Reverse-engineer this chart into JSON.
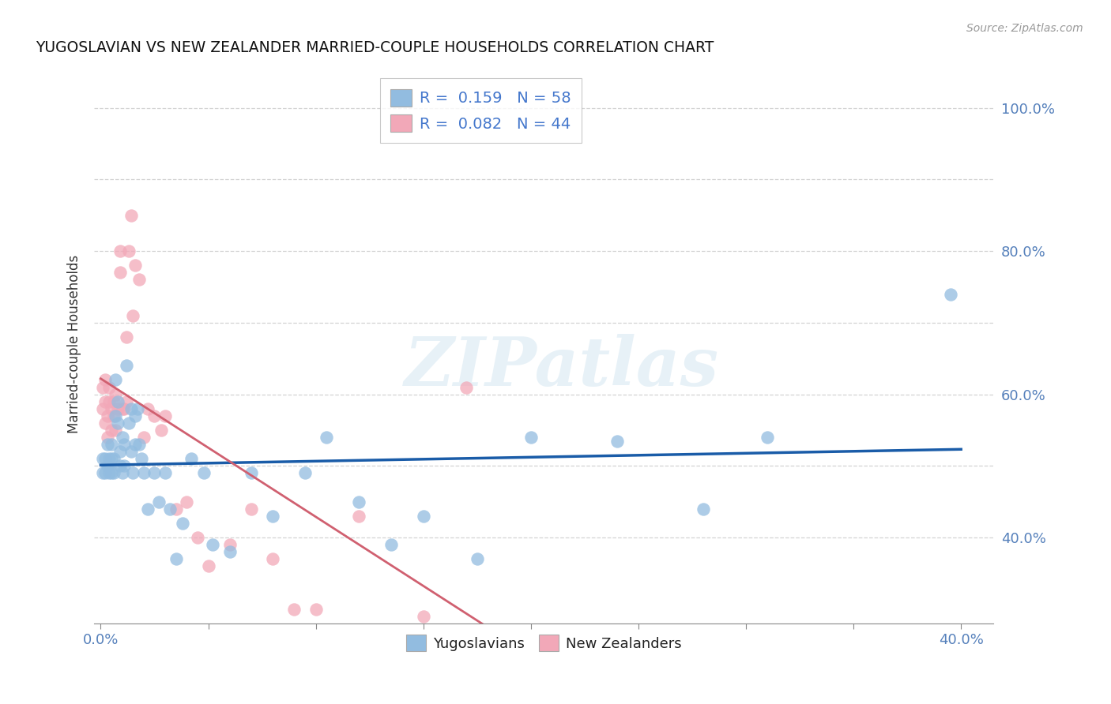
{
  "title": "YUGOSLAVIAN VS NEW ZEALANDER MARRIED-COUPLE HOUSEHOLDS CORRELATION CHART",
  "source": "Source: ZipAtlas.com",
  "ylabel": "Married-couple Households",
  "xlim": [
    -0.003,
    0.415
  ],
  "ylim": [
    0.28,
    1.06
  ],
  "x_tick_positions": [
    0.0,
    0.05,
    0.1,
    0.15,
    0.2,
    0.25,
    0.3,
    0.35,
    0.4
  ],
  "x_tick_labels": [
    "0.0%",
    "",
    "",
    "",
    "",
    "",
    "",
    "",
    "40.0%"
  ],
  "y_tick_positions": [
    0.4,
    0.5,
    0.6,
    0.7,
    0.8,
    0.9,
    1.0
  ],
  "y_tick_labels_right": [
    "40.0%",
    "",
    "60.0%",
    "",
    "80.0%",
    "",
    "100.0%"
  ],
  "legend_labels": [
    "Yugoslavians",
    "New Zealanders"
  ],
  "legend_r_n": [
    "R =  0.159   N = 58",
    "R =  0.082   N = 44"
  ],
  "blue_color": "#92bce0",
  "pink_color": "#f2a8b8",
  "blue_line_color": "#1a5ca8",
  "pink_line_color": "#d06070",
  "watermark": "ZIPatlas",
  "blue_r": 0.159,
  "pink_r": 0.082,
  "blue_scatter_x": [
    0.001,
    0.001,
    0.002,
    0.002,
    0.003,
    0.003,
    0.004,
    0.004,
    0.005,
    0.005,
    0.005,
    0.006,
    0.006,
    0.007,
    0.007,
    0.008,
    0.008,
    0.009,
    0.009,
    0.01,
    0.01,
    0.011,
    0.011,
    0.012,
    0.013,
    0.014,
    0.014,
    0.015,
    0.016,
    0.016,
    0.017,
    0.018,
    0.019,
    0.02,
    0.022,
    0.025,
    0.027,
    0.03,
    0.032,
    0.035,
    0.038,
    0.042,
    0.048,
    0.052,
    0.06,
    0.07,
    0.08,
    0.095,
    0.105,
    0.12,
    0.135,
    0.15,
    0.175,
    0.2,
    0.24,
    0.28,
    0.31,
    0.395
  ],
  "blue_scatter_y": [
    0.51,
    0.49,
    0.51,
    0.49,
    0.53,
    0.5,
    0.51,
    0.49,
    0.51,
    0.49,
    0.53,
    0.51,
    0.49,
    0.57,
    0.62,
    0.56,
    0.59,
    0.5,
    0.52,
    0.49,
    0.54,
    0.5,
    0.53,
    0.64,
    0.56,
    0.58,
    0.52,
    0.49,
    0.53,
    0.57,
    0.58,
    0.53,
    0.51,
    0.49,
    0.44,
    0.49,
    0.45,
    0.49,
    0.44,
    0.37,
    0.42,
    0.51,
    0.49,
    0.39,
    0.38,
    0.49,
    0.43,
    0.49,
    0.54,
    0.45,
    0.39,
    0.43,
    0.37,
    0.54,
    0.535,
    0.44,
    0.54,
    0.74
  ],
  "pink_scatter_x": [
    0.001,
    0.001,
    0.002,
    0.002,
    0.002,
    0.003,
    0.003,
    0.004,
    0.004,
    0.005,
    0.005,
    0.006,
    0.006,
    0.007,
    0.007,
    0.008,
    0.009,
    0.009,
    0.01,
    0.011,
    0.012,
    0.012,
    0.013,
    0.014,
    0.015,
    0.016,
    0.018,
    0.02,
    0.022,
    0.025,
    0.028,
    0.03,
    0.035,
    0.04,
    0.045,
    0.05,
    0.06,
    0.07,
    0.08,
    0.09,
    0.1,
    0.12,
    0.15,
    0.17
  ],
  "pink_scatter_y": [
    0.58,
    0.61,
    0.59,
    0.56,
    0.62,
    0.57,
    0.54,
    0.59,
    0.61,
    0.55,
    0.58,
    0.57,
    0.59,
    0.6,
    0.55,
    0.58,
    0.77,
    0.8,
    0.58,
    0.58,
    0.59,
    0.68,
    0.8,
    0.85,
    0.71,
    0.78,
    0.76,
    0.54,
    0.58,
    0.57,
    0.55,
    0.57,
    0.44,
    0.45,
    0.4,
    0.36,
    0.39,
    0.44,
    0.37,
    0.3,
    0.3,
    0.43,
    0.29,
    0.61
  ]
}
